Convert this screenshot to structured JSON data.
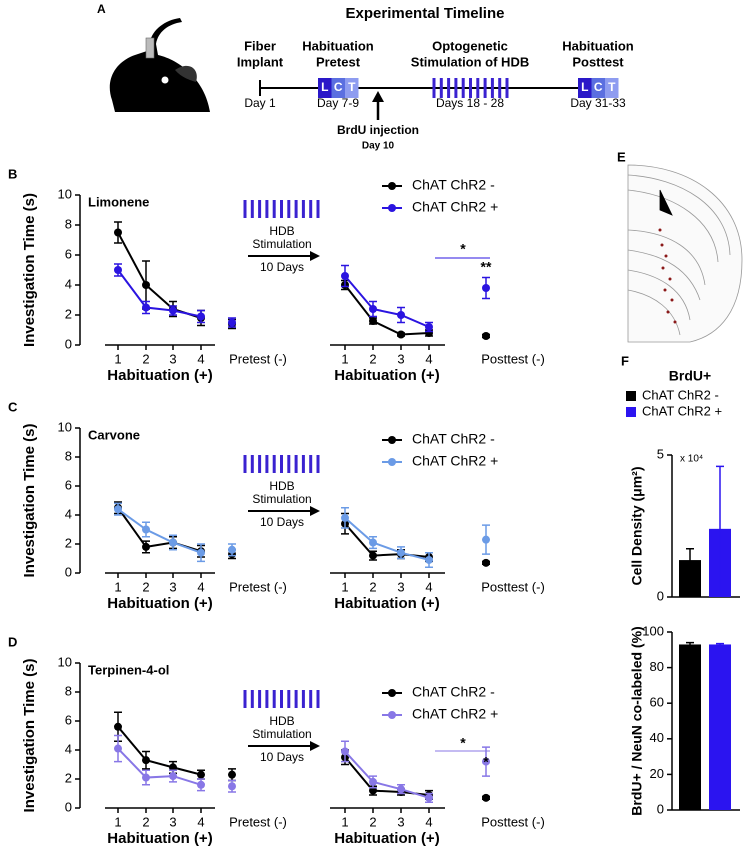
{
  "timeline": {
    "panel": "A",
    "title": "Experimental Timeline",
    "stages": [
      {
        "label": [
          "Fiber",
          "Implant"
        ],
        "day": "Day 1"
      },
      {
        "label": [
          "Habituation",
          "Pretest"
        ],
        "day": "Day 7-9",
        "tests": [
          "L",
          "C",
          "T"
        ]
      },
      {
        "label": [
          "Optogenetic",
          "Stimulation of HDB"
        ],
        "day": "Days 18 - 28"
      },
      {
        "label": [
          "Habituation",
          "Posttest"
        ],
        "day": "Day 31-33",
        "tests": [
          "L",
          "C",
          "T"
        ]
      }
    ],
    "injection": {
      "label": "BrdU injection",
      "day": "Day 10"
    }
  },
  "brain_section": {
    "panel": "E"
  },
  "chart_data": [
    {
      "type": "line",
      "panel": "B",
      "chart_label": "Limonene",
      "ylabel": "Investigation Time (s)",
      "categories": [
        "1",
        "2",
        "3",
        "4",
        "Pretest (-)",
        "1",
        "2",
        "3",
        "4",
        "Posttest (-)"
      ],
      "group_labels": [
        "Habituation (+)",
        "Habituation (+)"
      ],
      "stimulation_labels": [
        "HDB",
        "Stimulation",
        "10 Days"
      ],
      "ylim": [
        0,
        10
      ],
      "yticks": [
        0,
        2,
        4,
        6,
        8,
        10
      ],
      "annotations": [
        "*",
        "**"
      ],
      "series": [
        {
          "name": "ChAT ChR2 -",
          "color": "#000000",
          "values": [
            7.5,
            4.0,
            2.4,
            1.8,
            1.4,
            4.0,
            1.6,
            0.7,
            0.8,
            0.6
          ],
          "errors": [
            0.7,
            1.6,
            0.5,
            0.5,
            0.3,
            0.3,
            0.2,
            0.1,
            0.2,
            0.1
          ]
        },
        {
          "name": "ChAT ChR2 +",
          "color": "#2b14e0",
          "values": [
            5.0,
            2.5,
            2.3,
            1.9,
            1.5,
            4.6,
            2.4,
            2.0,
            1.2,
            3.8
          ],
          "errors": [
            0.4,
            0.4,
            0.3,
            0.4,
            0.3,
            0.7,
            0.5,
            0.5,
            0.3,
            0.7
          ]
        }
      ]
    },
    {
      "type": "line",
      "panel": "C",
      "chart_label": "Carvone",
      "ylabel": "Investigation Time (s)",
      "categories": [
        "1",
        "2",
        "3",
        "4",
        "Pretest (-)",
        "1",
        "2",
        "3",
        "4",
        "Posttest (-)"
      ],
      "group_labels": [
        "Habituation (+)",
        "Habituation (+)"
      ],
      "stimulation_labels": [
        "HDB",
        "Stimulation",
        "10 Days"
      ],
      "ylim": [
        0,
        10
      ],
      "yticks": [
        0,
        2,
        4,
        6,
        8,
        10
      ],
      "series": [
        {
          "name": "ChAT ChR2 -",
          "color": "#000000",
          "values": [
            4.5,
            1.8,
            2.1,
            1.5,
            1.3,
            3.4,
            1.2,
            1.3,
            1.1,
            0.7
          ],
          "errors": [
            0.4,
            0.4,
            0.4,
            0.4,
            0.3,
            0.7,
            0.3,
            0.3,
            0.3,
            0.1
          ]
        },
        {
          "name": "ChAT ChR2 +",
          "color": "#6b9be6",
          "values": [
            4.4,
            3.0,
            2.1,
            1.4,
            1.6,
            3.8,
            2.1,
            1.4,
            0.9,
            2.3
          ],
          "errors": [
            0.4,
            0.5,
            0.5,
            0.6,
            0.4,
            0.7,
            0.4,
            0.4,
            0.5,
            1.0
          ]
        }
      ]
    },
    {
      "type": "line",
      "panel": "D",
      "chart_label": "Terpinen-4-ol",
      "ylabel": "Investigation Time (s)",
      "categories": [
        "1",
        "2",
        "3",
        "4",
        "Pretest (-)",
        "1",
        "2",
        "3",
        "4",
        "Posttest (-)"
      ],
      "group_labels": [
        "Habituation (+)",
        "Habituation (+)"
      ],
      "stimulation_labels": [
        "HDB",
        "Stimulation",
        "10 Days"
      ],
      "ylim": [
        0,
        10
      ],
      "yticks": [
        0,
        2,
        4,
        6,
        8,
        10
      ],
      "annotations": [
        "*",
        "*"
      ],
      "series": [
        {
          "name": "ChAT ChR2 -",
          "color": "#000000",
          "values": [
            5.6,
            3.3,
            2.8,
            2.3,
            2.3,
            3.5,
            1.2,
            1.1,
            0.9,
            0.7
          ],
          "errors": [
            1.0,
            0.6,
            0.4,
            0.3,
            0.4,
            0.5,
            0.3,
            0.2,
            0.3,
            0.1
          ]
        },
        {
          "name": "ChAT ChR2 +",
          "color": "#8877e6",
          "values": [
            4.1,
            2.1,
            2.2,
            1.6,
            1.5,
            3.9,
            1.8,
            1.3,
            0.7,
            3.2
          ],
          "errors": [
            0.9,
            0.5,
            0.4,
            0.4,
            0.4,
            0.7,
            0.4,
            0.3,
            0.3,
            1.0
          ]
        }
      ]
    },
    {
      "type": "bar",
      "panel": "F",
      "title": "BrdU+",
      "ylabel": "Cell Density (μm²)",
      "multiplier": "x 10⁴",
      "ylim": [
        0,
        5
      ],
      "yticks": [
        0,
        5
      ],
      "series": [
        {
          "name": "ChAT ChR2 -",
          "color": "#000000",
          "values": [
            1.3
          ],
          "errors": [
            0.4
          ]
        },
        {
          "name": "ChAT ChR2 +",
          "color": "#2b14f0",
          "values": [
            2.4
          ],
          "errors": [
            2.2
          ]
        }
      ]
    },
    {
      "type": "bar",
      "ylabel": "BrdU+ / NeuN co-labeled (%)",
      "ylim": [
        0,
        100
      ],
      "yticks": [
        0,
        20,
        40,
        60,
        80,
        100
      ],
      "series": [
        {
          "color": "#000000",
          "values": [
            93
          ],
          "errors": [
            1
          ]
        },
        {
          "color": "#2b14f0",
          "values": [
            93
          ],
          "errors": [
            0.5
          ]
        }
      ]
    }
  ]
}
